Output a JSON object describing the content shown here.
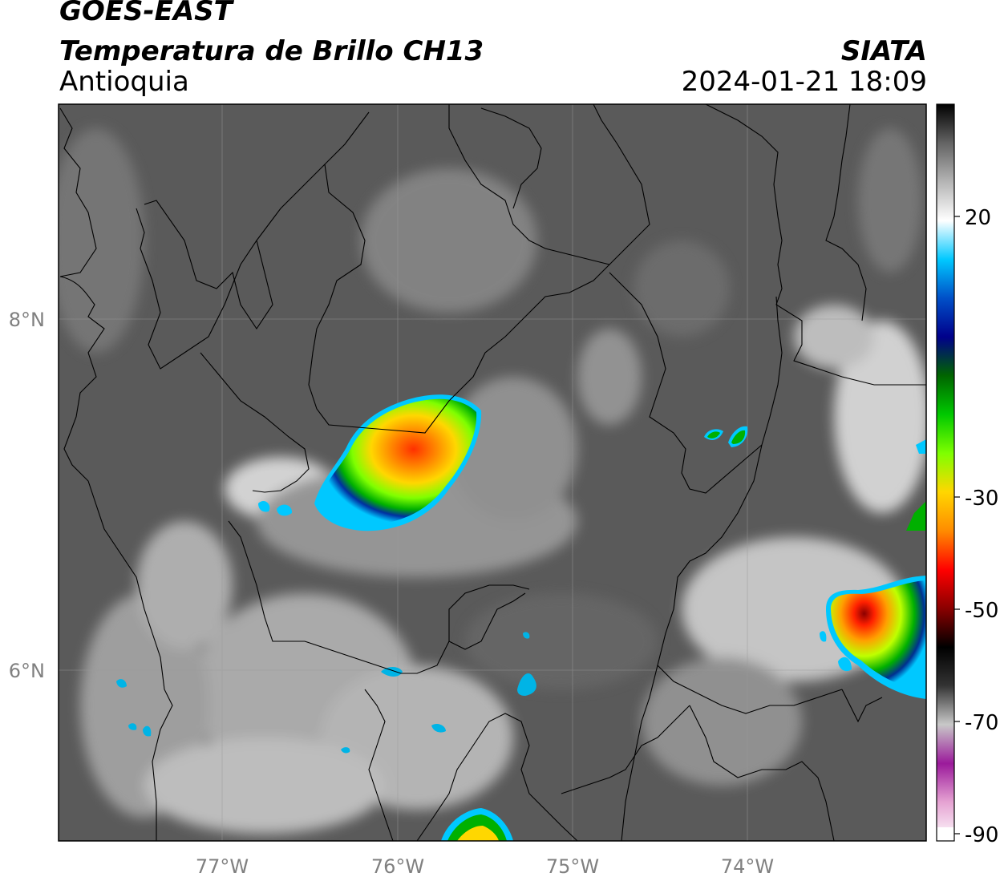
{
  "header": {
    "satellite": "GOES-EAST",
    "product": "Temperatura de Brillo CH13",
    "region": "Antioquia",
    "organization": "SIATA",
    "datetime": "2024-01-21 18:09"
  },
  "axes": {
    "lon_ticks": [
      "77°W",
      "76°W",
      "75°W",
      "74°W"
    ],
    "lat_ticks": [
      "8°N",
      "6°N"
    ]
  },
  "colorbar": {
    "labels": [
      "20",
      "-30",
      "-50",
      "-70",
      "-90"
    ],
    "stops": [
      "#ffffff",
      "#e5a2d2",
      "#9b1a9b",
      "#c8c8c8",
      "#333333",
      "#000000",
      "#8b0000",
      "#ff0000",
      "#ff8c00",
      "#ffd700",
      "#7fff00",
      "#00c800",
      "#006400",
      "#00008b",
      "#0050c8",
      "#00c8ff",
      "#ffffff",
      "#b4b4b4",
      "#646464",
      "#000000"
    ]
  },
  "colors": {
    "background": "#ffffff",
    "map_fill": "#5a5a5a",
    "grid": "#9a9a9a",
    "tick_text": "#808080"
  }
}
